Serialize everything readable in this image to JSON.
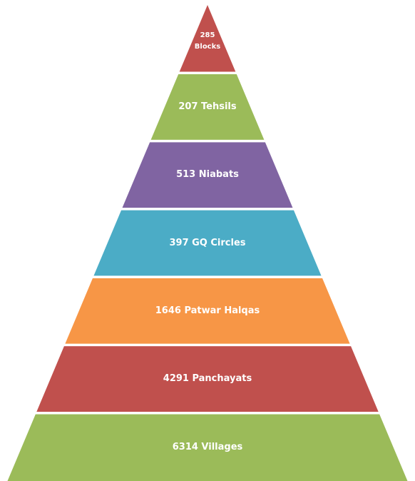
{
  "pyramid": {
    "levels": [
      {
        "label": "285 Blocks",
        "color": "#c0504d"
      },
      {
        "label": "207 Tehsils",
        "color": "#9bbb59"
      },
      {
        "label": "513 Niabats",
        "color": "#8064a2"
      },
      {
        "label": "397 GQ Circles",
        "color": "#4bacc6"
      },
      {
        "label": "1646 Patwar Halqas",
        "color": "#f79646"
      },
      {
        "label": "4291 Panchayats",
        "color": "#c0504d"
      },
      {
        "label": "6314 Villages",
        "color": "#9bbb59"
      }
    ]
  }
}
